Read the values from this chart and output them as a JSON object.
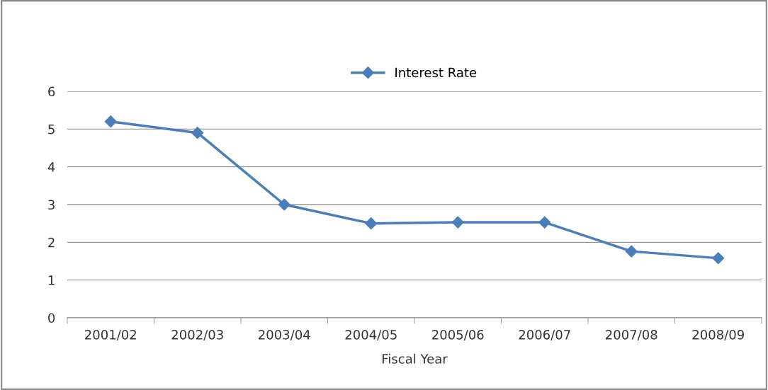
{
  "chart_data": {
    "type": "line",
    "xlabel": "Fiscal Year",
    "categories": [
      "2001/02",
      "2002/03",
      "2003/04",
      "2004/05",
      "2005/06",
      "2006/07",
      "2007/08",
      "2008/09"
    ],
    "series": [
      {
        "name": "Interest Rate",
        "color": "#4a7ebb",
        "values": [
          5.2,
          4.9,
          3.0,
          2.5,
          2.53,
          2.53,
          1.76,
          1.58
        ]
      }
    ],
    "ylim": [
      0,
      6
    ],
    "yticks": [
      0,
      1,
      2,
      3,
      4,
      5,
      6
    ],
    "grid": "y",
    "legend": "top",
    "marker": "diamond",
    "line_style": "solid"
  }
}
